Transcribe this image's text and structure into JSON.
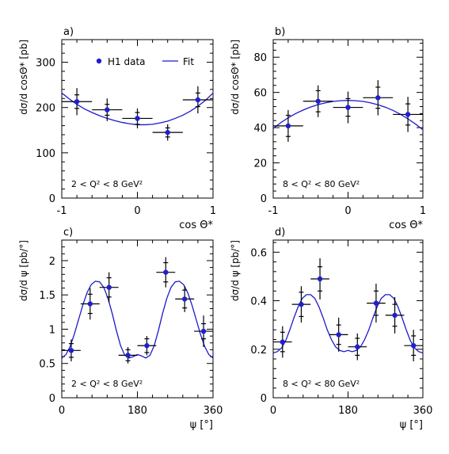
{
  "colors": {
    "data": "#1f1fd0",
    "fit": "#1a1acc",
    "errorbar": "#000000",
    "axis": "#000000"
  },
  "legend": {
    "data_label": "H1 data",
    "fit_label": "Fit",
    "placement": "top-right of panel a"
  },
  "chart_data": [
    {
      "id": "a",
      "type": "scatter",
      "panel_label": "a)",
      "annotation": "2 < Q² < 8 GeV²",
      "xlabel": "cos Θ*",
      "ylabel": "dσ/d cosΘ* [pb]",
      "xlim": [
        -1,
        1
      ],
      "ylim": [
        0,
        350
      ],
      "xticks": [
        -1,
        0,
        1
      ],
      "yticks": [
        0,
        100,
        200,
        300
      ],
      "series": [
        {
          "name": "H1 data",
          "x": [
            -0.8,
            -0.4,
            0.0,
            0.4,
            0.8
          ],
          "y": [
            213,
            195,
            176,
            145,
            217
          ],
          "xerr": [
            0.2,
            0.2,
            0.2,
            0.2,
            0.2
          ],
          "yerr_stat": [
            15,
            12,
            13,
            10,
            15
          ],
          "yerr_tot": [
            30,
            25,
            22,
            18,
            30
          ]
        },
        {
          "name": "Fit",
          "type": "line",
          "x": [
            -1.0,
            -0.9,
            -0.8,
            -0.7,
            -0.6,
            -0.5,
            -0.4,
            -0.3,
            -0.2,
            -0.1,
            0.0,
            0.1,
            0.2,
            0.3,
            0.4,
            0.5,
            0.6,
            0.7,
            0.8,
            0.9,
            1.0
          ],
          "y": [
            232,
            219,
            207,
            197,
            189,
            182,
            176,
            171,
            167,
            164,
            162,
            162,
            163,
            166,
            170,
            176,
            183,
            192,
            203,
            216,
            232
          ]
        }
      ]
    },
    {
      "id": "b",
      "type": "scatter",
      "panel_label": "b)",
      "annotation": "8 < Q² < 80 GeV²",
      "xlabel": "cos Θ*",
      "ylabel": "dσ/d cosΘ* [pb]",
      "xlim": [
        -1,
        1
      ],
      "ylim": [
        0,
        90
      ],
      "xticks": [
        -1,
        0,
        1
      ],
      "yticks": [
        0,
        20,
        40,
        60,
        80
      ],
      "series": [
        {
          "name": "H1 data",
          "x": [
            -0.8,
            -0.4,
            0.0,
            0.4,
            0.8
          ],
          "y": [
            41,
            55,
            51.5,
            57,
            47.5
          ],
          "xerr": [
            0.2,
            0.2,
            0.2,
            0.2,
            0.2
          ],
          "yerr_stat": [
            6,
            6,
            5,
            6,
            6
          ],
          "yerr_tot": [
            9,
            9,
            9,
            10,
            10
          ]
        },
        {
          "name": "Fit",
          "type": "line",
          "x": [
            -1.0,
            -0.9,
            -0.8,
            -0.7,
            -0.6,
            -0.5,
            -0.4,
            -0.3,
            -0.2,
            -0.1,
            0.0,
            0.1,
            0.2,
            0.3,
            0.4,
            0.5,
            0.6,
            0.7,
            0.8,
            0.9,
            1.0
          ],
          "y": [
            39.5,
            42.8,
            45.6,
            48.0,
            50.0,
            51.7,
            53.1,
            54.1,
            54.9,
            55.3,
            55.5,
            55.3,
            54.9,
            54.1,
            53.0,
            51.6,
            49.8,
            47.6,
            45.0,
            42.1,
            38.8
          ]
        }
      ]
    },
    {
      "id": "c",
      "type": "scatter",
      "panel_label": "c)",
      "annotation": "2 < Q² < 8 GeV²",
      "xlabel": "ψ [°]",
      "ylabel": "dσ/d ψ [pb/°]",
      "xlim": [
        0,
        360
      ],
      "ylim": [
        0,
        2.3
      ],
      "xticks": [
        0,
        180,
        360
      ],
      "yticks": [
        0,
        0.5,
        1,
        1.5,
        2
      ],
      "series": [
        {
          "name": "H1 data",
          "x": [
            22.5,
            67.5,
            112.5,
            157.5,
            202.5,
            247.5,
            292.5,
            337.5
          ],
          "y": [
            0.69,
            1.37,
            1.61,
            0.62,
            0.76,
            1.83,
            1.44,
            0.97
          ],
          "xerr": [
            22.5,
            22.5,
            22.5,
            22.5,
            22.5,
            22.5,
            22.5,
            22.5
          ],
          "yerr_stat": [
            0.1,
            0.14,
            0.14,
            0.08,
            0.1,
            0.14,
            0.13,
            0.11
          ],
          "yerr_tot": [
            0.16,
            0.23,
            0.22,
            0.12,
            0.14,
            0.22,
            0.19,
            0.23
          ]
        },
        {
          "name": "Fit",
          "type": "line",
          "x": [
            0,
            10,
            20,
            30,
            40,
            50,
            60,
            70,
            80,
            90,
            100,
            110,
            120,
            130,
            140,
            150,
            160,
            170,
            180,
            190,
            200,
            210,
            220,
            230,
            240,
            250,
            260,
            270,
            280,
            290,
            300,
            310,
            320,
            330,
            340,
            350,
            360
          ],
          "y": [
            0.58,
            0.63,
            0.75,
            0.93,
            1.14,
            1.35,
            1.53,
            1.65,
            1.7,
            1.69,
            1.61,
            1.45,
            1.23,
            0.98,
            0.76,
            0.62,
            0.58,
            0.6,
            0.63,
            0.61,
            0.58,
            0.62,
            0.76,
            0.98,
            1.23,
            1.45,
            1.61,
            1.69,
            1.7,
            1.65,
            1.53,
            1.35,
            1.14,
            0.93,
            0.75,
            0.63,
            0.58
          ]
        }
      ]
    },
    {
      "id": "d",
      "type": "scatter",
      "panel_label": "d)",
      "annotation": "8 < Q² < 80 GeV²",
      "xlabel": "ψ [°]",
      "ylabel": "dσ/d ψ [pb/°]",
      "xlim": [
        0,
        360
      ],
      "ylim": [
        0,
        0.65
      ],
      "xticks": [
        0,
        180,
        360
      ],
      "yticks": [
        0,
        0.2,
        0.4,
        0.6
      ],
      "series": [
        {
          "name": "H1 data",
          "x": [
            22.5,
            67.5,
            112.5,
            157.5,
            202.5,
            247.5,
            292.5,
            337.5
          ],
          "y": [
            0.23,
            0.385,
            0.49,
            0.26,
            0.21,
            0.39,
            0.34,
            0.215
          ],
          "xerr": [
            22.5,
            22.5,
            22.5,
            22.5,
            22.5,
            22.5,
            22.5,
            22.5
          ],
          "yerr_stat": [
            0.04,
            0.05,
            0.05,
            0.04,
            0.035,
            0.05,
            0.045,
            0.04
          ],
          "yerr_tot": [
            0.065,
            0.075,
            0.085,
            0.07,
            0.055,
            0.08,
            0.075,
            0.065
          ]
        },
        {
          "name": "Fit",
          "type": "line",
          "x": [
            0,
            10,
            20,
            30,
            40,
            50,
            60,
            70,
            80,
            90,
            100,
            110,
            120,
            130,
            140,
            150,
            160,
            170,
            180,
            190,
            200,
            210,
            220,
            230,
            240,
            250,
            260,
            270,
            280,
            290,
            300,
            310,
            320,
            330,
            340,
            350,
            360
          ],
          "y": [
            0.185,
            0.19,
            0.205,
            0.235,
            0.28,
            0.33,
            0.375,
            0.41,
            0.425,
            0.425,
            0.41,
            0.375,
            0.33,
            0.28,
            0.24,
            0.21,
            0.195,
            0.19,
            0.195,
            0.19,
            0.195,
            0.21,
            0.24,
            0.28,
            0.33,
            0.375,
            0.41,
            0.425,
            0.425,
            0.41,
            0.375,
            0.33,
            0.28,
            0.235,
            0.205,
            0.19,
            0.185
          ]
        }
      ]
    }
  ]
}
